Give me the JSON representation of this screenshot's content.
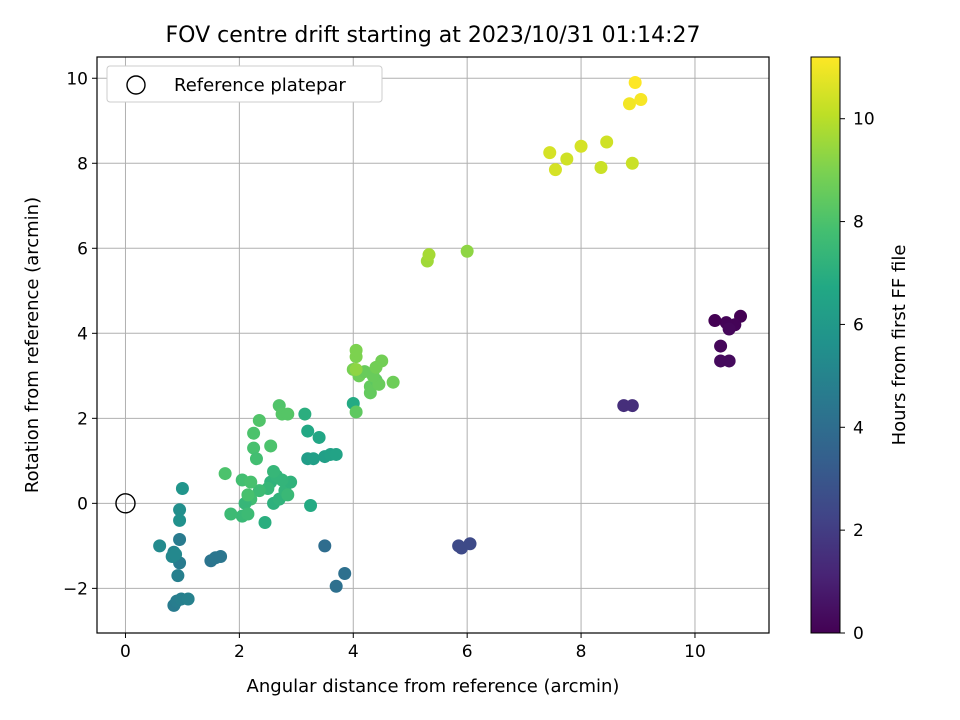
{
  "chart_data": {
    "type": "scatter",
    "title": "FOV centre drift starting at 2023/10/31 01:14:27",
    "xlabel": "Angular distance from reference (arcmin)",
    "ylabel": "Rotation from reference (arcmin)",
    "xlim": [
      -0.5,
      11.3
    ],
    "ylim": [
      -3.05,
      10.5
    ],
    "xticks": [
      0,
      2,
      4,
      6,
      8,
      10
    ],
    "yticks": [
      -2,
      0,
      2,
      4,
      6,
      8,
      10
    ],
    "xtick_labels": [
      "0",
      "2",
      "4",
      "6",
      "8",
      "10"
    ],
    "ytick_labels": [
      "−2",
      "0",
      "2",
      "4",
      "6",
      "8",
      "10"
    ],
    "grid": true,
    "legend": {
      "placement": "top-left",
      "entries": [
        "Reference platepar"
      ]
    },
    "reference_point": {
      "x": 0,
      "y": 0
    },
    "colorbar": {
      "label": "Hours from first FF file",
      "range": [
        0,
        11.2
      ],
      "ticks": [
        0,
        2,
        4,
        6,
        8,
        10
      ],
      "tick_labels": [
        "0",
        "2",
        "4",
        "6",
        "8",
        "10"
      ],
      "colormap": "viridis"
    },
    "points": [
      {
        "x": 10.8,
        "y": 4.4,
        "h": 0.0
      },
      {
        "x": 10.7,
        "y": 4.2,
        "h": 0.1
      },
      {
        "x": 10.55,
        "y": 4.25,
        "h": 0.1
      },
      {
        "x": 10.35,
        "y": 4.3,
        "h": 0.0
      },
      {
        "x": 10.6,
        "y": 4.1,
        "h": 0.2
      },
      {
        "x": 10.45,
        "y": 3.7,
        "h": 0.2
      },
      {
        "x": 10.45,
        "y": 3.35,
        "h": 0.3
      },
      {
        "x": 10.6,
        "y": 3.35,
        "h": 0.3
      },
      {
        "x": 8.75,
        "y": 2.3,
        "h": 1.5
      },
      {
        "x": 8.9,
        "y": 2.3,
        "h": 1.5
      },
      {
        "x": 5.85,
        "y": -1.0,
        "h": 2.5
      },
      {
        "x": 5.9,
        "y": -1.05,
        "h": 2.5
      },
      {
        "x": 6.05,
        "y": -0.95,
        "h": 2.5
      },
      {
        "x": 3.5,
        "y": -1.0,
        "h": 4.0
      },
      {
        "x": 3.85,
        "y": -1.65,
        "h": 4.1
      },
      {
        "x": 3.7,
        "y": -1.95,
        "h": 4.1
      },
      {
        "x": 1.5,
        "y": -1.35,
        "h": 4.3
      },
      {
        "x": 1.58,
        "y": -1.28,
        "h": 4.4
      },
      {
        "x": 1.67,
        "y": -1.25,
        "h": 4.4
      },
      {
        "x": 0.95,
        "y": -0.85,
        "h": 4.6
      },
      {
        "x": 0.95,
        "y": -1.4,
        "h": 4.6
      },
      {
        "x": 0.92,
        "y": -1.7,
        "h": 4.8
      },
      {
        "x": 0.85,
        "y": -2.4,
        "h": 4.6
      },
      {
        "x": 0.9,
        "y": -2.3,
        "h": 4.7
      },
      {
        "x": 0.98,
        "y": -2.25,
        "h": 4.8
      },
      {
        "x": 1.1,
        "y": -2.25,
        "h": 4.9
      },
      {
        "x": 0.85,
        "y": -1.15,
        "h": 5.0
      },
      {
        "x": 0.82,
        "y": -1.25,
        "h": 5.2
      },
      {
        "x": 0.88,
        "y": -1.2,
        "h": 5.2
      },
      {
        "x": 0.6,
        "y": -1.0,
        "h": 5.3
      },
      {
        "x": 0.95,
        "y": -0.15,
        "h": 5.5
      },
      {
        "x": 0.95,
        "y": -0.4,
        "h": 5.6
      },
      {
        "x": 1.0,
        "y": 0.35,
        "h": 5.8
      },
      {
        "x": 3.2,
        "y": 1.05,
        "h": 6.2
      },
      {
        "x": 3.3,
        "y": 1.05,
        "h": 6.3
      },
      {
        "x": 3.5,
        "y": 1.1,
        "h": 6.3
      },
      {
        "x": 3.6,
        "y": 1.15,
        "h": 6.4
      },
      {
        "x": 3.7,
        "y": 1.15,
        "h": 6.5
      },
      {
        "x": 3.4,
        "y": 1.55,
        "h": 6.6
      },
      {
        "x": 3.2,
        "y": 1.7,
        "h": 6.7
      },
      {
        "x": 3.15,
        "y": 2.1,
        "h": 7.0
      },
      {
        "x": 3.25,
        "y": -0.05,
        "h": 6.8
      },
      {
        "x": 4.0,
        "y": 2.35,
        "h": 6.8
      },
      {
        "x": 2.45,
        "y": -0.45,
        "h": 7.0
      },
      {
        "x": 2.6,
        "y": 0.0,
        "h": 7.1
      },
      {
        "x": 2.7,
        "y": 0.1,
        "h": 7.2
      },
      {
        "x": 2.8,
        "y": 0.3,
        "h": 7.3
      },
      {
        "x": 2.55,
        "y": 0.5,
        "h": 7.2
      },
      {
        "x": 2.65,
        "y": 0.65,
        "h": 7.3
      },
      {
        "x": 2.5,
        "y": 0.35,
        "h": 7.4
      },
      {
        "x": 2.9,
        "y": 0.5,
        "h": 7.2
      },
      {
        "x": 2.75,
        "y": 0.55,
        "h": 7.3
      },
      {
        "x": 2.6,
        "y": 0.75,
        "h": 7.4
      },
      {
        "x": 2.85,
        "y": 0.2,
        "h": 7.5
      },
      {
        "x": 2.35,
        "y": 0.3,
        "h": 7.6
      },
      {
        "x": 2.2,
        "y": 0.1,
        "h": 7.7
      },
      {
        "x": 2.1,
        "y": 0.0,
        "h": 7.4
      },
      {
        "x": 2.05,
        "y": -0.3,
        "h": 7.5
      },
      {
        "x": 2.15,
        "y": -0.25,
        "h": 7.6
      },
      {
        "x": 1.85,
        "y": -0.25,
        "h": 7.6
      },
      {
        "x": 2.05,
        "y": 0.55,
        "h": 7.8
      },
      {
        "x": 2.2,
        "y": 0.5,
        "h": 7.9
      },
      {
        "x": 2.15,
        "y": 0.2,
        "h": 7.9
      },
      {
        "x": 1.75,
        "y": 0.7,
        "h": 8.0
      },
      {
        "x": 2.25,
        "y": 1.3,
        "h": 7.9
      },
      {
        "x": 2.3,
        "y": 1.05,
        "h": 7.8
      },
      {
        "x": 2.55,
        "y": 1.35,
        "h": 8.0
      },
      {
        "x": 2.25,
        "y": 1.65,
        "h": 8.0
      },
      {
        "x": 2.35,
        "y": 1.95,
        "h": 8.1
      },
      {
        "x": 2.7,
        "y": 2.3,
        "h": 8.1
      },
      {
        "x": 2.75,
        "y": 2.1,
        "h": 8.2
      },
      {
        "x": 2.85,
        "y": 2.1,
        "h": 8.2
      },
      {
        "x": 4.05,
        "y": 2.15,
        "h": 8.4
      },
      {
        "x": 4.3,
        "y": 2.6,
        "h": 8.5
      },
      {
        "x": 4.3,
        "y": 2.75,
        "h": 8.5
      },
      {
        "x": 4.4,
        "y": 2.9,
        "h": 8.4
      },
      {
        "x": 4.45,
        "y": 2.8,
        "h": 8.6
      },
      {
        "x": 4.35,
        "y": 3.0,
        "h": 8.6
      },
      {
        "x": 4.1,
        "y": 3.0,
        "h": 8.7
      },
      {
        "x": 4.2,
        "y": 3.1,
        "h": 8.6
      },
      {
        "x": 4.7,
        "y": 2.85,
        "h": 8.7
      },
      {
        "x": 4.4,
        "y": 3.2,
        "h": 8.8
      },
      {
        "x": 4.5,
        "y": 3.35,
        "h": 8.8
      },
      {
        "x": 4.0,
        "y": 3.15,
        "h": 8.9
      },
      {
        "x": 4.05,
        "y": 3.45,
        "h": 9.0
      },
      {
        "x": 4.05,
        "y": 3.6,
        "h": 9.0
      },
      {
        "x": 4.05,
        "y": 3.15,
        "h": 9.3
      },
      {
        "x": 5.3,
        "y": 5.7,
        "h": 9.6
      },
      {
        "x": 5.33,
        "y": 5.85,
        "h": 9.7
      },
      {
        "x": 6.0,
        "y": 5.93,
        "h": 9.3
      },
      {
        "x": 7.45,
        "y": 8.25,
        "h": 10.5
      },
      {
        "x": 7.55,
        "y": 7.85,
        "h": 10.5
      },
      {
        "x": 7.75,
        "y": 8.1,
        "h": 10.4
      },
      {
        "x": 8.0,
        "y": 8.4,
        "h": 10.5
      },
      {
        "x": 8.35,
        "y": 7.9,
        "h": 10.3
      },
      {
        "x": 8.45,
        "y": 8.5,
        "h": 10.4
      },
      {
        "x": 8.9,
        "y": 8.0,
        "h": 10.3
      },
      {
        "x": 8.85,
        "y": 9.4,
        "h": 11.0
      },
      {
        "x": 8.95,
        "y": 9.9,
        "h": 11.2
      },
      {
        "x": 9.05,
        "y": 9.5,
        "h": 11.1
      }
    ]
  }
}
